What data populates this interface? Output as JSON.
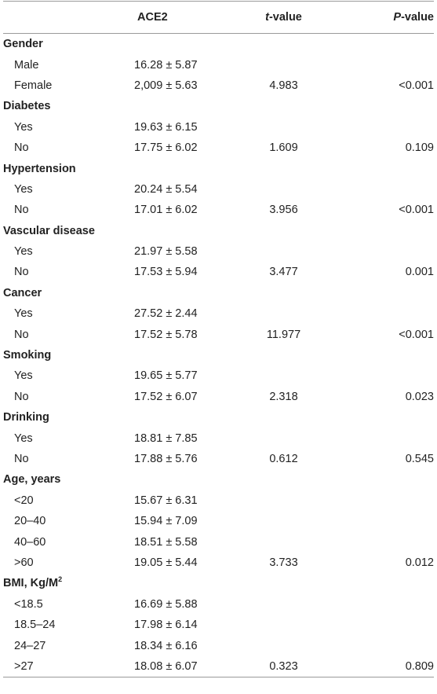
{
  "headers": {
    "label": "",
    "ace2": "ACE2",
    "t_italic": "t",
    "t_rest": "-value",
    "p_italic": "P",
    "p_rest": "-value"
  },
  "rows": [
    {
      "type": "group",
      "label": "Gender"
    },
    {
      "type": "sub",
      "label": "Male",
      "ace2": "16.28 ± 5.87",
      "t": "",
      "p": ""
    },
    {
      "type": "sub",
      "label": "Female",
      "ace2": "2,009 ± 5.63",
      "t": "4.983",
      "p": "<0.001"
    },
    {
      "type": "group",
      "label": "Diabetes"
    },
    {
      "type": "sub",
      "label": "Yes",
      "ace2": "19.63 ± 6.15",
      "t": "",
      "p": ""
    },
    {
      "type": "sub",
      "label": "No",
      "ace2": "17.75 ± 6.02",
      "t": "1.609",
      "p": "0.109"
    },
    {
      "type": "group",
      "label": "Hypertension"
    },
    {
      "type": "sub",
      "label": "Yes",
      "ace2": "20.24 ± 5.54",
      "t": "",
      "p": ""
    },
    {
      "type": "sub",
      "label": "No",
      "ace2": "17.01 ± 6.02",
      "t": "3.956",
      "p": "<0.001"
    },
    {
      "type": "group",
      "label": "Vascular disease"
    },
    {
      "type": "sub",
      "label": "Yes",
      "ace2": "21.97 ± 5.58",
      "t": "",
      "p": ""
    },
    {
      "type": "sub",
      "label": "No",
      "ace2": "17.53 ± 5.94",
      "t": "3.477",
      "p": "0.001"
    },
    {
      "type": "group",
      "label": "Cancer"
    },
    {
      "type": "sub",
      "label": "Yes",
      "ace2": "27.52 ± 2.44",
      "t": "",
      "p": ""
    },
    {
      "type": "sub",
      "label": "No",
      "ace2": "17.52 ± 5.78",
      "t": "11.977",
      "p": "<0.001"
    },
    {
      "type": "group",
      "label": "Smoking"
    },
    {
      "type": "sub",
      "label": "Yes",
      "ace2": "19.65 ± 5.77",
      "t": "",
      "p": ""
    },
    {
      "type": "sub",
      "label": "No",
      "ace2": "17.52 ± 6.07",
      "t": "2.318",
      "p": "0.023"
    },
    {
      "type": "group",
      "label": "Drinking"
    },
    {
      "type": "sub",
      "label": "Yes",
      "ace2": "18.81 ± 7.85",
      "t": "",
      "p": ""
    },
    {
      "type": "sub",
      "label": "No",
      "ace2": "17.88 ± 5.76",
      "t": "0.612",
      "p": "0.545"
    },
    {
      "type": "group",
      "label": "Age, years"
    },
    {
      "type": "sub",
      "label": "<20",
      "ace2": "15.67 ± 6.31",
      "t": "",
      "p": ""
    },
    {
      "type": "sub",
      "label": "20–40",
      "ace2": "15.94 ± 7.09",
      "t": "",
      "p": ""
    },
    {
      "type": "sub",
      "label": "40–60",
      "ace2": "18.51 ± 5.58",
      "t": "",
      "p": ""
    },
    {
      "type": "sub",
      "label": ">60",
      "ace2": "19.05 ± 5.44",
      "t": "3.733",
      "p": "0.012"
    },
    {
      "type": "group",
      "label": "BMI, Kg/M",
      "sup": "2"
    },
    {
      "type": "sub",
      "label": "<18.5",
      "ace2": "16.69 ± 5.88",
      "t": "",
      "p": ""
    },
    {
      "type": "sub",
      "label": "18.5–24",
      "ace2": "17.98 ± 6.14",
      "t": "",
      "p": ""
    },
    {
      "type": "sub",
      "label": "24–27",
      "ace2": "18.34 ± 6.16",
      "t": "",
      "p": ""
    },
    {
      "type": "sub",
      "label": ">27",
      "ace2": "18.08 ± 6.07",
      "t": "0.323",
      "p": "0.809"
    }
  ]
}
